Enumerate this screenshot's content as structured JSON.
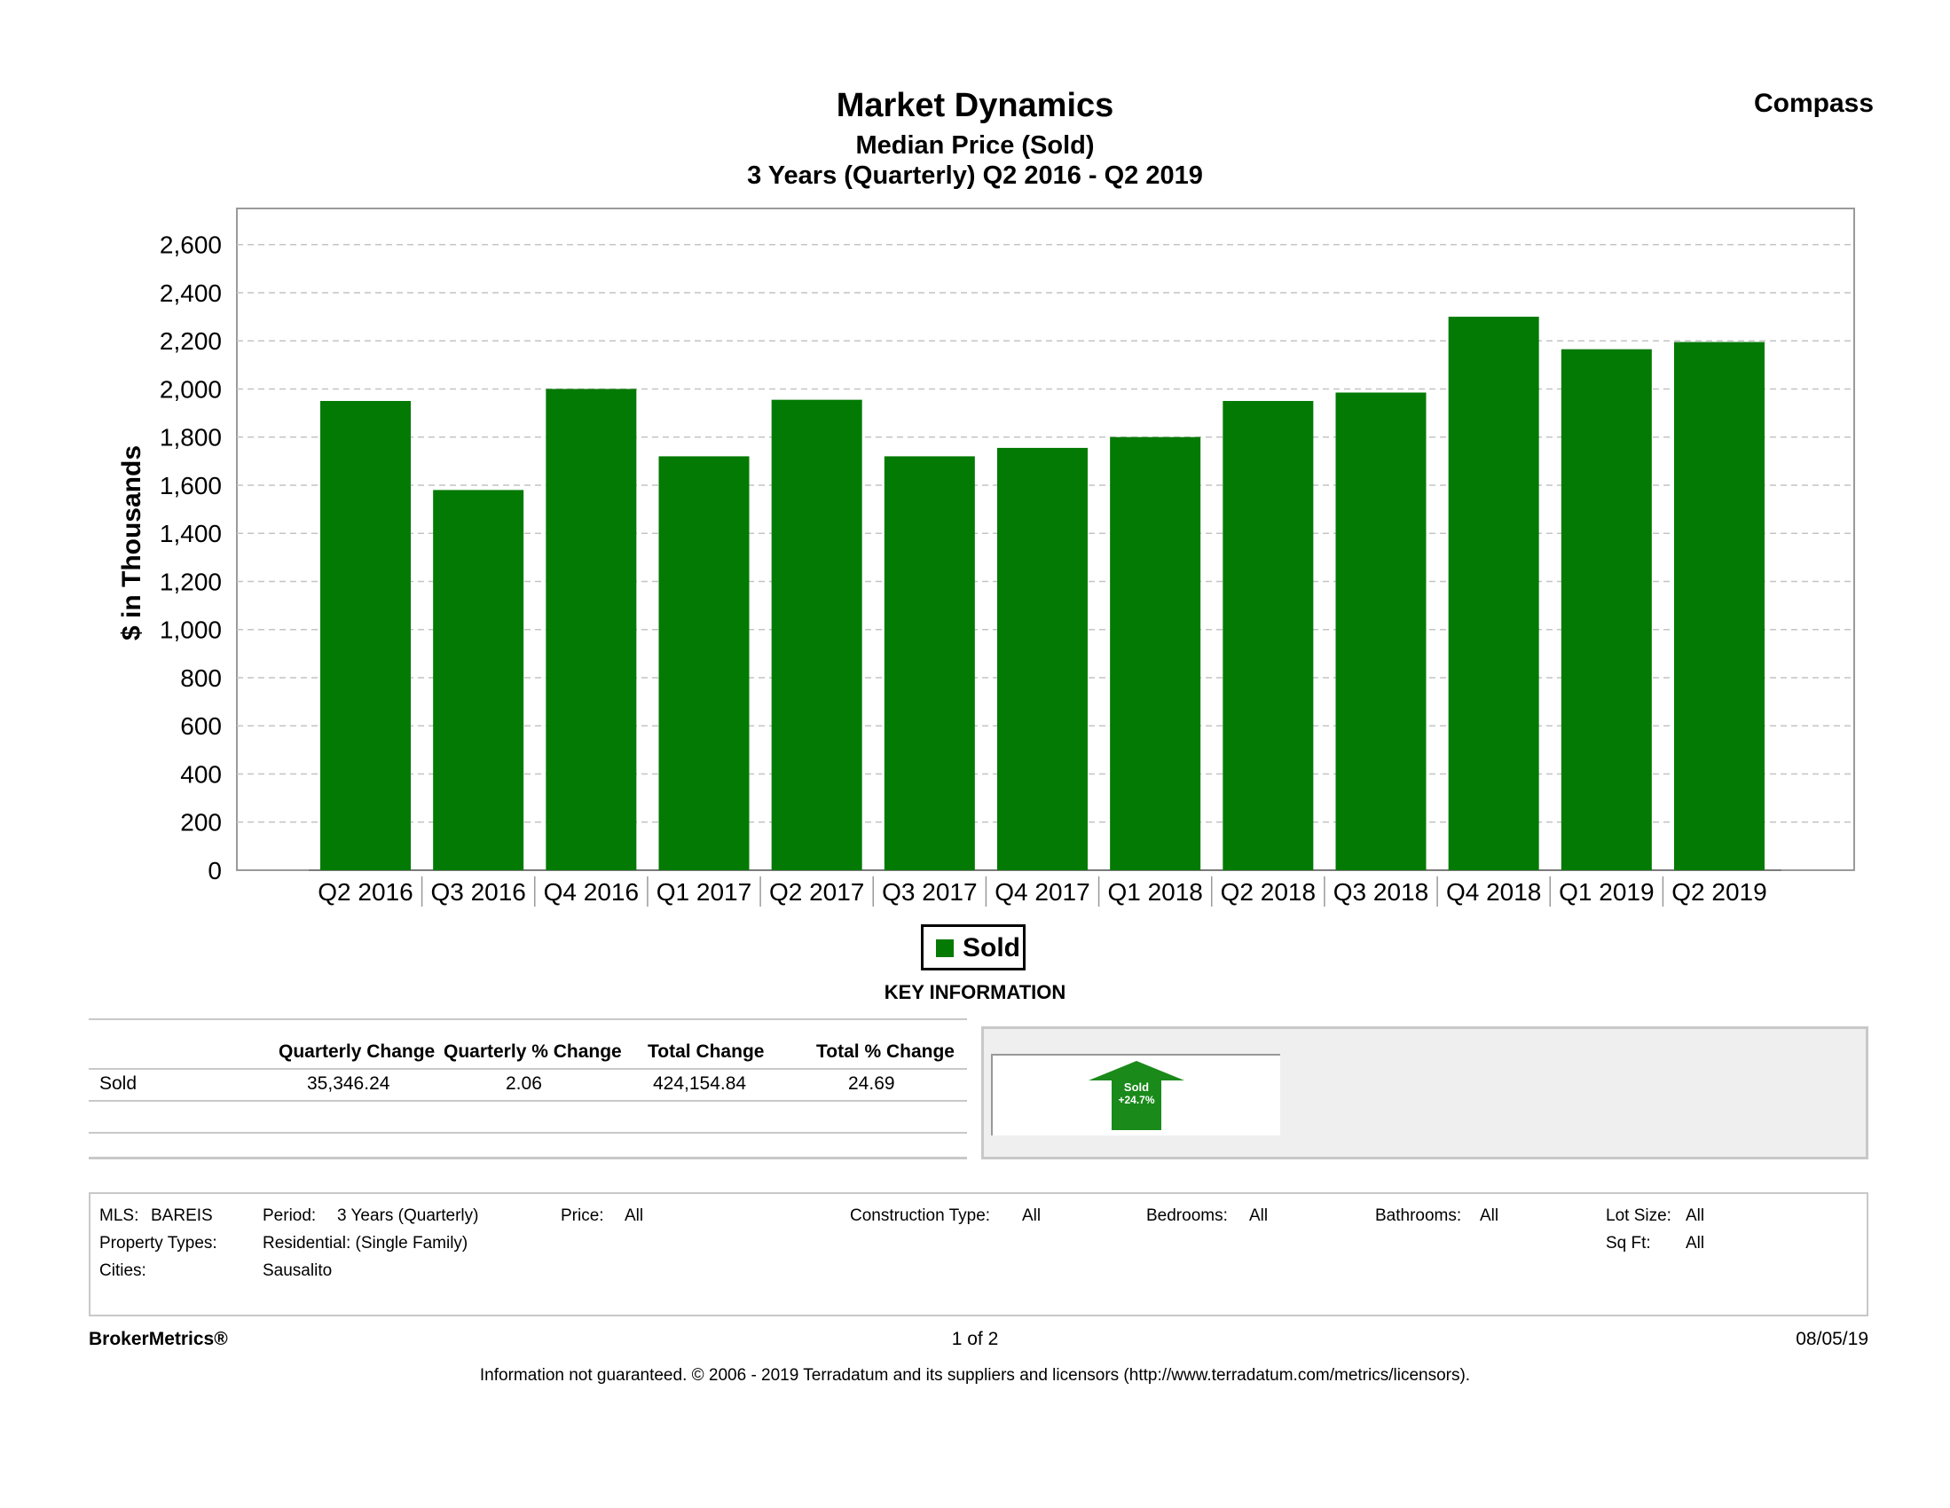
{
  "header": {
    "title": "Market Dynamics",
    "subtitle": "Median Price (Sold)",
    "period_line": "3 Years (Quarterly) Q2 2016 - Q2 2019",
    "brand": "Compass"
  },
  "chart_data": {
    "type": "bar",
    "categories": [
      "Q2 2016",
      "Q3 2016",
      "Q4 2016",
      "Q1 2017",
      "Q2 2017",
      "Q3 2017",
      "Q4 2017",
      "Q1 2018",
      "Q2 2018",
      "Q3 2018",
      "Q4 2018",
      "Q1 2019",
      "Q2 2019"
    ],
    "series": [
      {
        "name": "Sold",
        "values": [
          1950,
          1580,
          2000,
          1720,
          1955,
          1720,
          1755,
          1800,
          1950,
          1985,
          2300,
          2165,
          2195
        ]
      }
    ],
    "ylabel": "$ in Thousands",
    "ylim": [
      0,
      2750
    ],
    "yticks": [
      "0",
      "200",
      "400",
      "600",
      "800",
      "1,000",
      "1,200",
      "1,400",
      "1,600",
      "1,800",
      "2,000",
      "2,200",
      "2,400",
      "2,600"
    ],
    "ytick_values": [
      0,
      200,
      400,
      600,
      800,
      1000,
      1200,
      1400,
      1600,
      1800,
      2000,
      2200,
      2400,
      2600
    ],
    "grid": true,
    "bar_color": "#037a03",
    "legend": {
      "position": "bottom-center",
      "label": "Sold"
    }
  },
  "key_info": {
    "heading": "KEY INFORMATION",
    "columns": [
      "Quarterly Change",
      "Quarterly % Change",
      "Total Change",
      "Total % Change"
    ],
    "rows": [
      {
        "label": "Sold",
        "values": [
          "35,346.24",
          "2.06",
          "424,154.84",
          "24.69"
        ]
      }
    ],
    "arrow": {
      "label": "Sold",
      "change": "+24.7%",
      "direction": "up",
      "color": "#1a8a1a"
    }
  },
  "criteria": {
    "mls_label": "MLS:",
    "mls_value": "BAREIS",
    "period_label": "Period:",
    "period_value": "3 Years (Quarterly)",
    "price_label": "Price:",
    "price_value": "All",
    "construction_label": "Construction Type:",
    "construction_value": "All",
    "bedrooms_label": "Bedrooms:",
    "bedrooms_value": "All",
    "bathrooms_label": "Bathrooms:",
    "bathrooms_value": "All",
    "lotsize_label": "Lot Size:",
    "lotsize_value": "All",
    "proptypes_label": "Property Types:",
    "proptypes_value": "Residential: (Single Family)",
    "sqft_label": "Sq Ft:",
    "sqft_value": "All",
    "cities_label": "Cities:",
    "cities_value": "Sausalito"
  },
  "footer": {
    "brand": "BrokerMetrics®",
    "page": "1 of 2",
    "date": "08/05/19",
    "disclaimer": "Information not guaranteed.  © 2006 - 2019 Terradatum and its suppliers and licensors (http://www.terradatum.com/metrics/licensors)."
  }
}
